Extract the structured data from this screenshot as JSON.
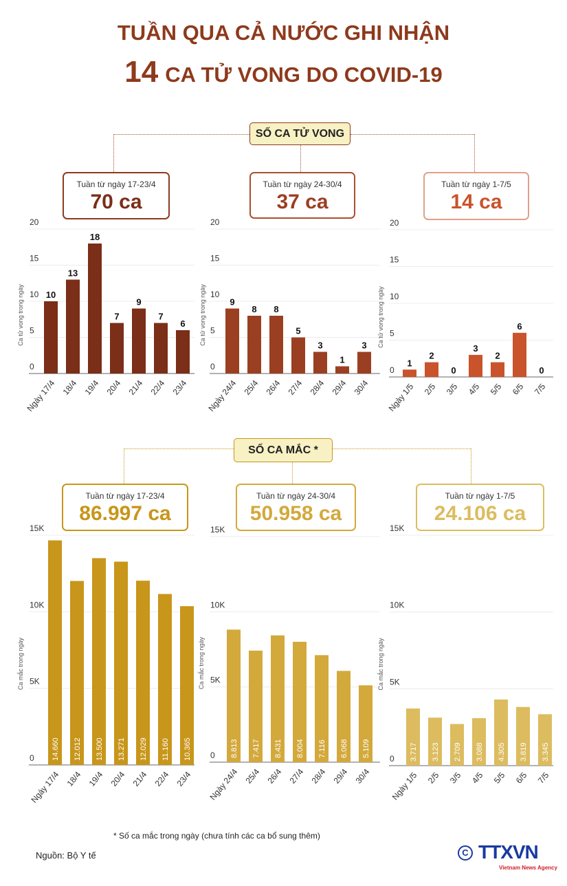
{
  "title": {
    "line1": "TUẦN QUA CẢ NƯỚC GHI NHẬN",
    "line2_number": "14",
    "line2_text": "CA TỬ VONG DO COVID-19"
  },
  "deaths": {
    "label": "SỐ CA TỬ VONG",
    "weeks": [
      {
        "label": "Tuần từ ngày 17-23/4",
        "total": "70 ca"
      },
      {
        "label": "Tuần từ ngày 24-30/4",
        "total": "37 ca"
      },
      {
        "label": "Tuần từ ngày 1-7/5",
        "total": "14 ca"
      }
    ]
  },
  "cases": {
    "label": "SỐ CA MẮC *",
    "weeks": [
      {
        "label": "Tuần từ ngày 17-23/4",
        "total": "86.997 ca"
      },
      {
        "label": "Tuần từ ngày 24-30/4",
        "total": "50.958 ca"
      },
      {
        "label": "Tuần từ ngày 1-7/5",
        "total": "24.106 ca"
      }
    ]
  },
  "colors": {
    "title": "#8e3a1c",
    "deaths": [
      "#7b2e18",
      "#9b3f22",
      "#c9532b"
    ],
    "cases": [
      "#c8961a",
      "#d3a93c",
      "#dcbc5f"
    ]
  },
  "chart_data": [
    {
      "type": "bar",
      "ylabel": "Ca tử vong trong ngày",
      "ylim": [
        0,
        20
      ],
      "yticks": [
        "0",
        "5",
        "10",
        "15",
        "20"
      ],
      "categories": [
        "Ngày 17/4",
        "18/4",
        "19/4",
        "20/4",
        "21/4",
        "22/4",
        "23/4"
      ],
      "values": [
        10,
        13,
        18,
        7,
        9,
        7,
        6
      ],
      "labels": [
        "10",
        "13",
        "18",
        "7",
        "9",
        "7",
        "6"
      ],
      "grid": true
    },
    {
      "type": "bar",
      "ylabel": "Ca tử vong trong ngày",
      "ylim": [
        0,
        20
      ],
      "yticks": [
        "0",
        "5",
        "10",
        "15",
        "20"
      ],
      "categories": [
        "Ngày 24/4",
        "25/4",
        "26/4",
        "27/4",
        "28/4",
        "29/4",
        "30/4"
      ],
      "values": [
        9,
        8,
        8,
        5,
        3,
        1,
        3
      ],
      "labels": [
        "9",
        "8",
        "8",
        "5",
        "3",
        "1",
        "3"
      ],
      "grid": true
    },
    {
      "type": "bar",
      "ylabel": "Ca tử vong trong ngày",
      "ylim": [
        0,
        20
      ],
      "yticks": [
        "0",
        "5",
        "10",
        "15",
        "20"
      ],
      "categories": [
        "Ngày 1/5",
        "2/5",
        "3/5",
        "4/5",
        "5/5",
        "6/5",
        "7/5"
      ],
      "values": [
        1,
        2,
        0,
        3,
        2,
        6,
        0
      ],
      "labels": [
        "1",
        "2",
        "0",
        "3",
        "2",
        "6",
        "0"
      ],
      "grid": true
    },
    {
      "type": "bar",
      "ylabel": "Ca mắc trong ngày",
      "ylim": [
        0,
        15000
      ],
      "yticks": [
        "0",
        "5K",
        "10K",
        "15K"
      ],
      "categories": [
        "Ngày 17/4",
        "18/4",
        "19/4",
        "20/4",
        "21/4",
        "22/4",
        "23/4"
      ],
      "values": [
        14660,
        12012,
        13500,
        13271,
        12029,
        11160,
        10365
      ],
      "labels": [
        "14.660",
        "12.012",
        "13.500",
        "13.271",
        "12.029",
        "11.160",
        "10.365"
      ],
      "grid": true
    },
    {
      "type": "bar",
      "ylabel": "Ca mắc trong ngày",
      "ylim": [
        0,
        15000
      ],
      "yticks": [
        "0",
        "5K",
        "10K",
        "15K"
      ],
      "categories": [
        "Ngày 24/4",
        "25/4",
        "26/4",
        "27/4",
        "28/4",
        "29/4",
        "30/4"
      ],
      "values": [
        8813,
        7417,
        8431,
        8004,
        7116,
        6068,
        5109
      ],
      "labels": [
        "8.813",
        "7.417",
        "8.431",
        "8.004",
        "7.116",
        "6.068",
        "5.109"
      ],
      "grid": true
    },
    {
      "type": "bar",
      "ylabel": "Ca mắc trong ngày",
      "ylim": [
        0,
        15000
      ],
      "yticks": [
        "0",
        "5K",
        "10K",
        "15K"
      ],
      "categories": [
        "Ngày 1/5",
        "2/5",
        "3/5",
        "4/5",
        "5/5",
        "6/5",
        "7/5"
      ],
      "values": [
        3717,
        3123,
        2709,
        3088,
        4305,
        3819,
        3345
      ],
      "labels": [
        "3.717",
        "3.123",
        "2.709",
        "3.088",
        "4.305",
        "3.819",
        "3.345"
      ],
      "grid": true
    }
  ],
  "footnote": "* Số ca mắc trong ngày (chưa tính các ca bổ sung thêm)",
  "source": "Nguồn: Bộ Y tế",
  "logo": {
    "text": "TTXVN",
    "subtitle": "Vietnam News Agency"
  }
}
